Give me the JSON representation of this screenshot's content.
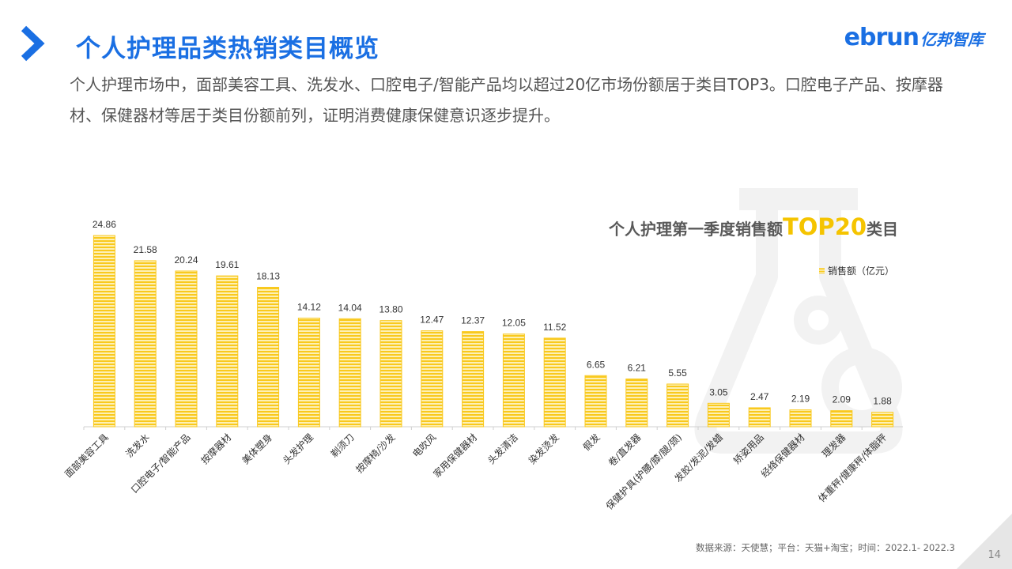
{
  "header": {
    "title": "个人护理品类热销类目概览",
    "logo_latin": "ebrun",
    "logo_cn": "亿邦智库",
    "subtitle": "个人护理市场中，面部美容工具、洗发水、口腔电子/智能产品均以超过20亿市场份额居于类目TOP3。口腔电子产品、按摩器材、保健器材等居于类目份额前列，证明消费健康保健意识逐步提升。"
  },
  "chart_data": {
    "type": "bar",
    "title_prefix": "个人护理第一季度销售额",
    "title_highlight": "TOP20",
    "title_suffix": "类目",
    "legend": "销售额（亿元）",
    "categories": [
      "面部美容工具",
      "洗发水",
      "口腔电子/智能产品",
      "按摩器材",
      "美体塑身",
      "头发护理",
      "剃须刀",
      "按摩椅/沙发",
      "电吹风",
      "家用保健器材",
      "头发清洁",
      "染发烫发",
      "假发",
      "卷/直发器",
      "保健护具(护腰/膝/腿/颈)",
      "发胶/发泥/发蜡",
      "矫姿用品",
      "经络保健器材",
      "理发器",
      "体重秤/健康秤/体脂秤"
    ],
    "values": [
      24.86,
      21.58,
      20.24,
      19.61,
      18.13,
      14.12,
      14.04,
      13.8,
      12.47,
      12.37,
      12.05,
      11.52,
      6.65,
      6.21,
      5.55,
      3.05,
      2.47,
      2.19,
      2.09,
      1.88
    ],
    "value_labels": [
      "24.86",
      "21.58",
      "20.24",
      "19.61",
      "18.13",
      "14.12",
      "14.04",
      "13.80",
      "12.47",
      "12.37",
      "12.05",
      "11.52",
      "6.65",
      "6.21",
      "5.55",
      "3.05",
      "2.47",
      "2.19",
      "2.09",
      "1.88"
    ],
    "ylim": [
      0,
      25
    ],
    "bar_color": "#f9c91e",
    "grid": false
  },
  "footer": {
    "source": "数据来源：天使慧；平台：天猫+淘宝；时间：2022.1- 2022.3",
    "page_number": "14"
  },
  "colors": {
    "accent": "#1a6fe3",
    "highlight": "#f5c400"
  }
}
